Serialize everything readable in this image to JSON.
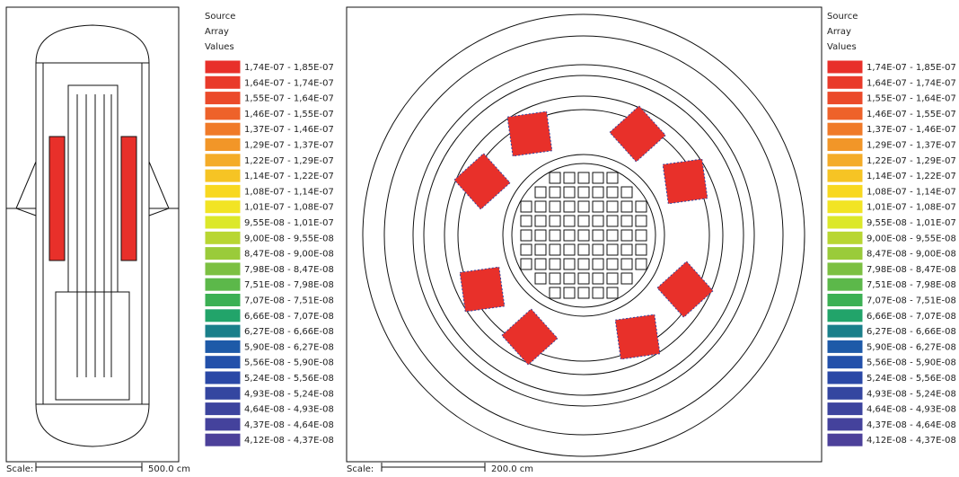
{
  "legend": {
    "title": [
      "Source",
      "Array",
      "Values"
    ],
    "entries": [
      {
        "label": "1,74E-07 - 1,85E-07",
        "color": "#e8302a"
      },
      {
        "label": "1,64E-07 - 1,74E-07",
        "color": "#e93a2a"
      },
      {
        "label": "1,55E-07 - 1,64E-07",
        "color": "#eb4a2a"
      },
      {
        "label": "1,46E-07 - 1,55E-07",
        "color": "#ee622a"
      },
      {
        "label": "1,37E-07 - 1,46E-07",
        "color": "#f07a28"
      },
      {
        "label": "1,29E-07 - 1,37E-07",
        "color": "#f29628"
      },
      {
        "label": "1,22E-07 - 1,29E-07",
        "color": "#f4ac28"
      },
      {
        "label": "1,14E-07 - 1,22E-07",
        "color": "#f6c424"
      },
      {
        "label": "1,08E-07 - 1,14E-07",
        "color": "#f8d820"
      },
      {
        "label": "1,01E-07 - 1,08E-07",
        "color": "#f2e424"
      },
      {
        "label": "9,55E-08 - 1,01E-07",
        "color": "#dce82a"
      },
      {
        "label": "9,00E-08 - 9,55E-08",
        "color": "#b8d632"
      },
      {
        "label": "8,47E-08 - 9,00E-08",
        "color": "#9acb3a"
      },
      {
        "label": "7,98E-08 - 8,47E-08",
        "color": "#7cc042"
      },
      {
        "label": "7,51E-08 - 7,98E-08",
        "color": "#5cb84a"
      },
      {
        "label": "7,07E-08 - 7,51E-08",
        "color": "#3cb054"
      },
      {
        "label": "6,66E-08 - 7,07E-08",
        "color": "#22a46a"
      },
      {
        "label": "6,27E-08 - 6,66E-08",
        "color": "#1a7f8a"
      },
      {
        "label": "5,90E-08 - 6,27E-08",
        "color": "#1e5aa8"
      },
      {
        "label": "5,56E-08 - 5,90E-08",
        "color": "#2250aa"
      },
      {
        "label": "5,24E-08 - 5,56E-08",
        "color": "#2a48a6"
      },
      {
        "label": "4,93E-08 - 5,24E-08",
        "color": "#3446a0"
      },
      {
        "label": "4,64E-08 - 4,93E-08",
        "color": "#3c449e"
      },
      {
        "label": "4,37E-08 - 4,64E-08",
        "color": "#44429c"
      },
      {
        "label": "4,12E-08 - 4,37E-08",
        "color": "#4c409a"
      }
    ]
  },
  "panels": [
    {
      "scale_label": "Scale:",
      "scale_value": "500.0 cm"
    },
    {
      "scale_label": "Scale:",
      "scale_value": "200.0 cm"
    }
  ]
}
